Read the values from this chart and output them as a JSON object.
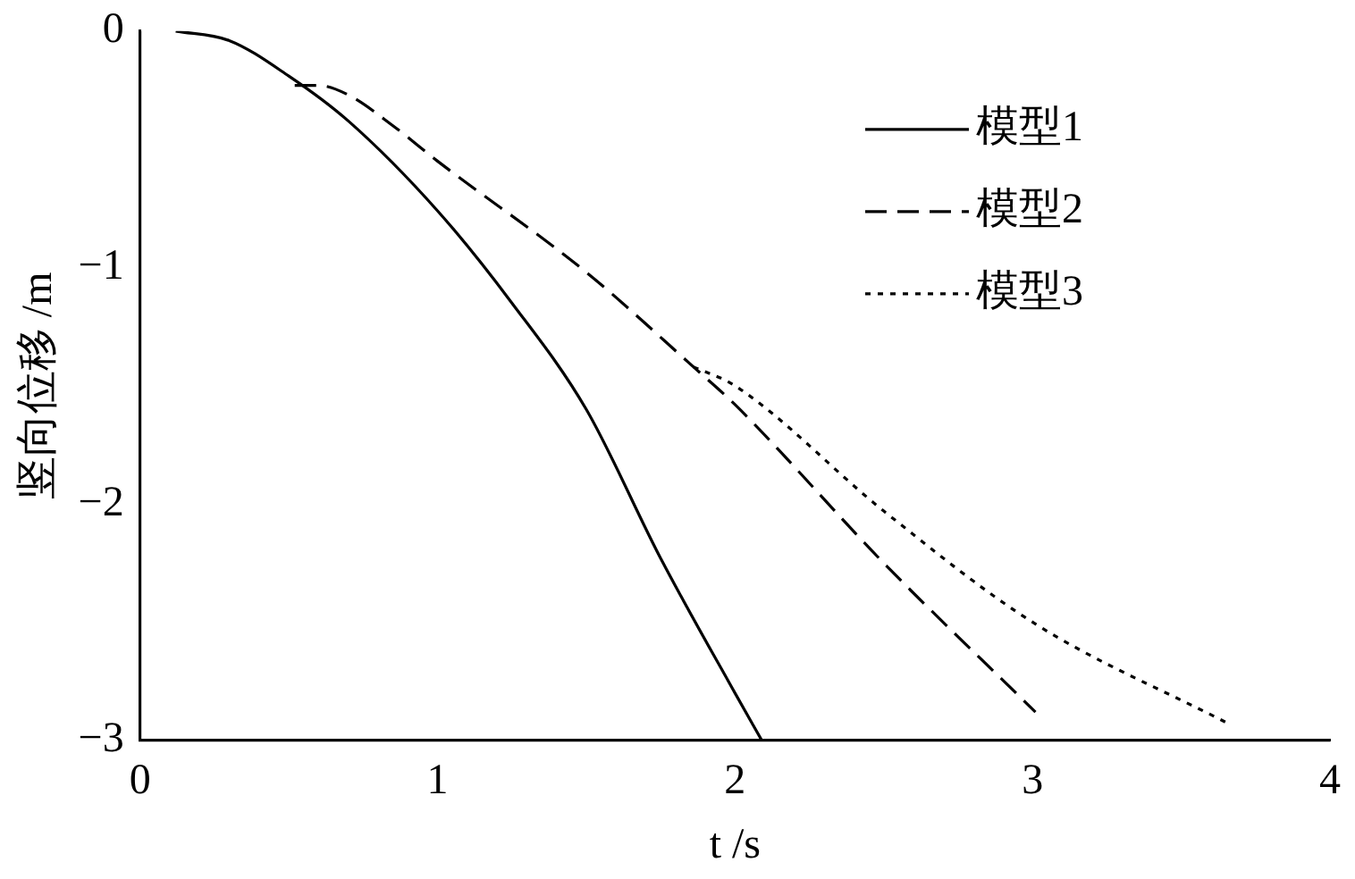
{
  "chart_data": {
    "type": "line",
    "xlabel": "t /s",
    "ylabel": "竖向位移 /m",
    "xlim": [
      0,
      4
    ],
    "xticks": [
      0,
      1,
      2,
      3,
      4
    ],
    "ylim": [
      -3,
      0
    ],
    "yticks": [
      -3,
      -2,
      -1,
      0
    ],
    "grid": false,
    "legend": "top right",
    "marker": "none",
    "series": [
      {
        "name": "模型1",
        "color": "#000000",
        "line_style": "solid",
        "x": [
          0.12,
          0.3,
          0.5,
          0.7,
          1,
          1.25,
          1.5,
          1.75,
          2,
          2.09
        ],
        "values": [
          0,
          -0.04,
          -0.19,
          -0.38,
          -0.76,
          -1.15,
          -1.6,
          -2.23,
          -2.8,
          -3
        ]
      },
      {
        "name": "模型2",
        "color": "#000000",
        "line_style": "dashed",
        "x": [
          0.52,
          0.6,
          0.7,
          0.85,
          1,
          1.5,
          1.86,
          2,
          2.5,
          3.01
        ],
        "values": [
          -0.23,
          -0.23,
          -0.27,
          -0.4,
          -0.55,
          -1.02,
          -1.42,
          -1.58,
          -2.25,
          -2.88
        ]
      },
      {
        "name": "模型3",
        "color": "#000000",
        "line_style": "dotted",
        "x": [
          1.86,
          2,
          2.5,
          3,
          3.66
        ],
        "values": [
          -1.42,
          -1.5,
          -2.03,
          -2.5,
          -2.93
        ]
      }
    ]
  }
}
